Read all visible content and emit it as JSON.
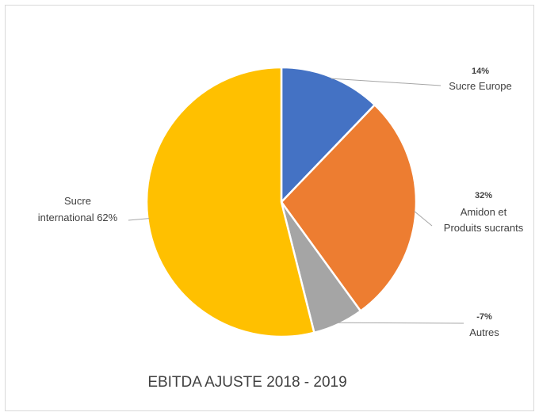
{
  "chart_data": {
    "type": "pie",
    "title": "EBITDA AJUSTE 2018 - 2019",
    "slices": [
      {
        "label": "Sucre Europe",
        "value": 14,
        "display_value": "14%",
        "color": "#4472C4"
      },
      {
        "label_lines": [
          "Amidon et",
          "Produits sucrants"
        ],
        "value": 32,
        "display_value": "32%",
        "color": "#ED7D31"
      },
      {
        "label": "Autres",
        "value": 7,
        "display_value": "-7%",
        "color": "#A5A5A5"
      },
      {
        "label_lines": [
          "Sucre",
          "international 62%"
        ],
        "value": 62,
        "display_value": "62%",
        "color": "#FFC000"
      }
    ]
  }
}
